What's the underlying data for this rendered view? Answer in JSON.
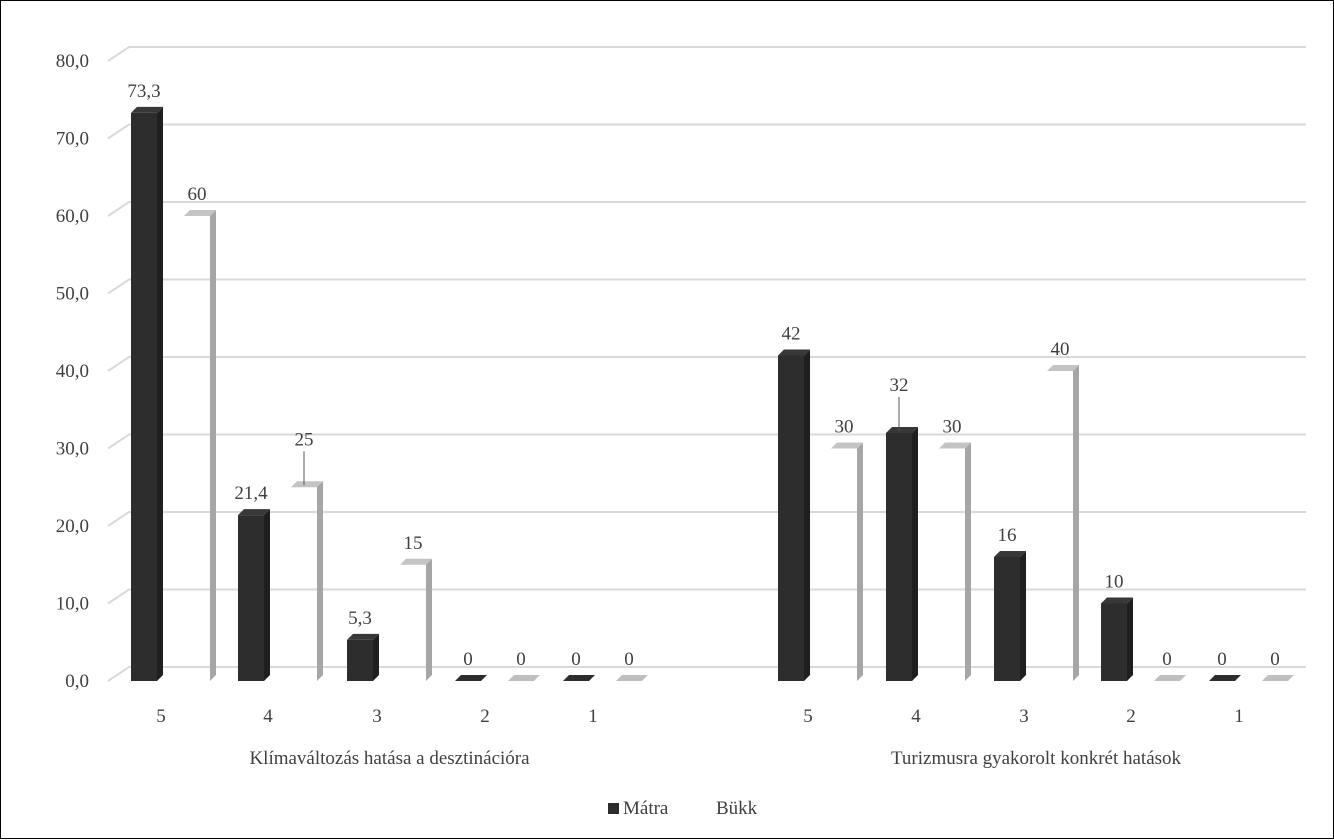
{
  "chart_data": {
    "type": "bar",
    "title": "",
    "xlabel": "",
    "ylabel": "",
    "ylim": [
      0,
      80
    ],
    "yticks": [
      "0,0",
      "10,0",
      "20,0",
      "30,0",
      "40,0",
      "50,0",
      "60,0",
      "70,0",
      "80,0"
    ],
    "grid": true,
    "legend_position": "bottom",
    "groups": [
      {
        "name": "Klímaváltozás hatása a desztinációra",
        "categories": [
          "5",
          "4",
          "3",
          "2",
          "1"
        ],
        "series": [
          {
            "name": "Mátra",
            "values": [
              73.3,
              21.4,
              5.3,
              0,
              0
            ],
            "labels": [
              "73,3",
              "21,4",
              "5,3",
              "0",
              "0"
            ]
          },
          {
            "name": "Bükk",
            "values": [
              60,
              25,
              15,
              0,
              0
            ],
            "labels": [
              "60",
              "25",
              "15",
              "0",
              "0"
            ]
          }
        ]
      },
      {
        "name": "Turizmusra gyakorolt konkrét hatások",
        "categories": [
          "5",
          "4",
          "3",
          "2",
          "1"
        ],
        "series": [
          {
            "name": "Mátra",
            "values": [
              42,
              32,
              16,
              10,
              0
            ],
            "labels": [
              "42",
              "32",
              "16",
              "10",
              "0"
            ]
          },
          {
            "name": "Bükk",
            "values": [
              30,
              30,
              40,
              0,
              0
            ],
            "labels": [
              "30",
              "30",
              "40",
              "0",
              "0"
            ]
          }
        ]
      }
    ],
    "colors": {
      "Mátra": "#2d2d2d",
      "Bükk": "#a6a6a6",
      "grid": "#d9d9d9",
      "text": "#404040"
    }
  }
}
